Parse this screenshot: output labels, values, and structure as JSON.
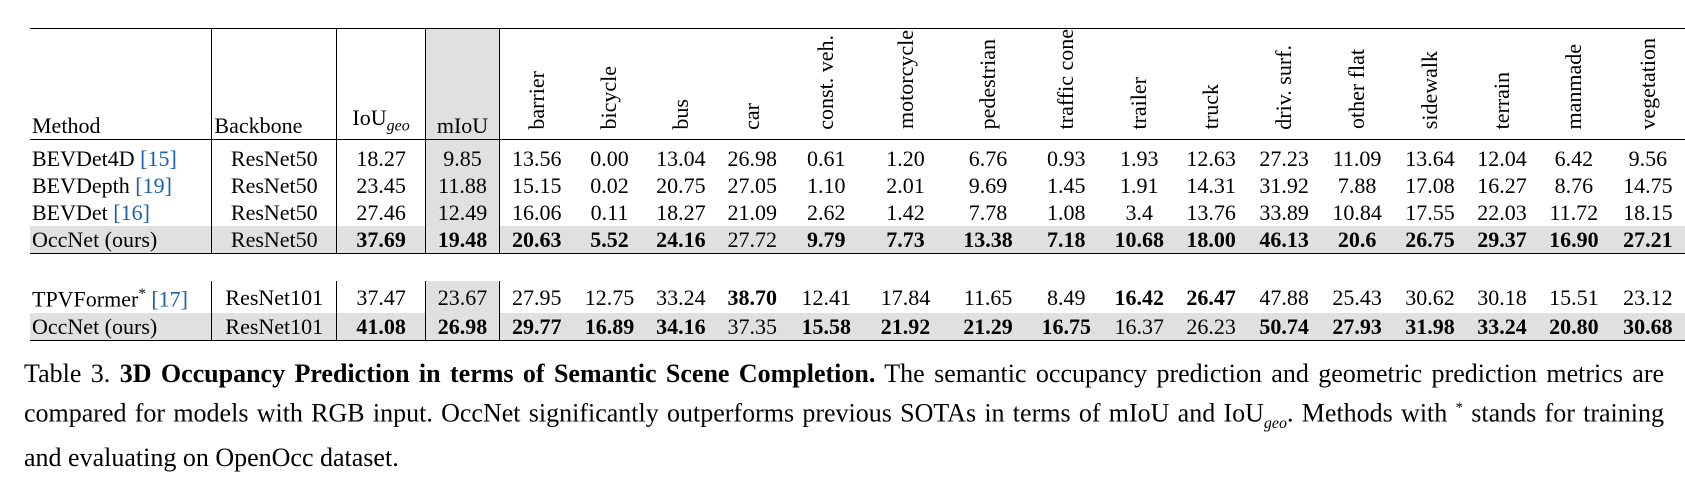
{
  "table": {
    "headers": {
      "method": "Method",
      "backbone": "Backbone",
      "iou_base": "IoU",
      "iou_sub": "geo",
      "miou": "mIoU",
      "classes": [
        "barrier",
        "bicycle",
        "bus",
        "car",
        "const. veh.",
        "motorcycle",
        "pedestrian",
        "traffic cone",
        "trailer",
        "truck",
        "driv. surf.",
        "other flat",
        "sidewalk",
        "terrain",
        "manmade",
        "vegetation"
      ]
    },
    "rows": [
      {
        "method": "BEVDet4D",
        "cite": "[15]",
        "backbone": "ResNet50",
        "iou": "18.27",
        "miou": "9.85",
        "vals": [
          "13.56",
          "0.00",
          "13.04",
          "26.98",
          "0.61",
          "1.20",
          "6.76",
          "0.93",
          "1.93",
          "12.63",
          "27.23",
          "11.09",
          "13.64",
          "12.04",
          "6.42",
          "9.56"
        ]
      },
      {
        "method": "BEVDepth",
        "cite": "[19]",
        "backbone": "ResNet50",
        "iou": "23.45",
        "miou": "11.88",
        "vals": [
          "15.15",
          "0.02",
          "20.75",
          "27.05",
          "1.10",
          "2.01",
          "9.69",
          "1.45",
          "1.91",
          "14.31",
          "31.92",
          "7.88",
          "17.08",
          "16.27",
          "8.76",
          "14.75"
        ]
      },
      {
        "method": "BEVDet",
        "cite": "[16]",
        "backbone": "ResNet50",
        "iou": "27.46",
        "miou": "12.49",
        "vals": [
          "16.06",
          "0.11",
          "18.27",
          "21.09",
          "2.62",
          "1.42",
          "7.78",
          "1.08",
          "3.4",
          "13.76",
          "33.89",
          "10.84",
          "17.55",
          "22.03",
          "11.72",
          "18.15"
        ]
      },
      {
        "method": "OccNet (ours)",
        "cite": "",
        "backbone": "ResNet50",
        "iou": "37.69",
        "miou": "19.48",
        "vals": [
          "20.63",
          "5.52",
          "24.16",
          "27.72",
          "9.79",
          "7.73",
          "13.38",
          "7.18",
          "10.68",
          "18.00",
          "46.13",
          "20.6",
          "26.75",
          "29.37",
          "16.90",
          "27.21"
        ]
      },
      {
        "method": "TPVFormer",
        "sup": "*",
        "cite": "[17]",
        "backbone": "ResNet101",
        "iou": "37.47",
        "miou": "23.67",
        "vals": [
          "27.95",
          "12.75",
          "33.24",
          "38.70",
          "12.41",
          "17.84",
          "11.65",
          "8.49",
          "16.42",
          "26.47",
          "47.88",
          "25.43",
          "30.62",
          "30.18",
          "15.51",
          "23.12"
        ]
      },
      {
        "method": "OccNet (ours)",
        "cite": "",
        "backbone": "ResNet101",
        "iou": "41.08",
        "miou": "26.98",
        "vals": [
          "29.77",
          "16.89",
          "34.16",
          "37.35",
          "15.58",
          "21.92",
          "21.29",
          "16.75",
          "16.37",
          "26.23",
          "50.74",
          "27.93",
          "31.98",
          "33.24",
          "20.80",
          "30.68"
        ]
      }
    ]
  },
  "caption": {
    "label": "Table 3.",
    "title": "3D Occupancy Prediction in terms of Semantic Scene Completion.",
    "body1": "The semantic occupancy prediction and geometric prediction metrics are compared for models with RGB input. OccNet significantly outperforms previous SOTAs in terms of mIoU and IoU",
    "sub": "geo",
    "body2": ".",
    "body3a": "Methods with",
    "sup": "*",
    "body3b": "stands for training and evaluating on OpenOcc dataset."
  }
}
